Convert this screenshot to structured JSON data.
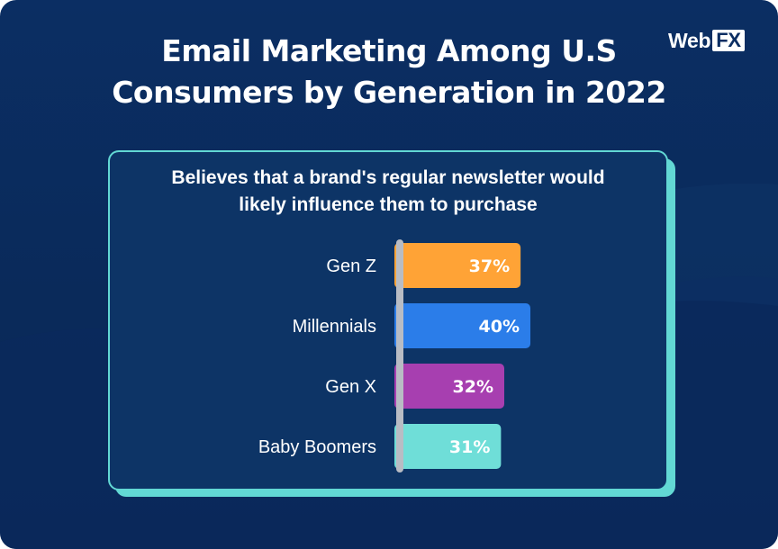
{
  "title": {
    "line1": "Email Marketing Among U.S",
    "line2": "Consumers by Generation in 2022"
  },
  "logo": {
    "web": "Web",
    "fx": "FX"
  },
  "colors": {
    "background": "#0b2e63",
    "panel": "#0d3466",
    "panel_border": "#62d8d4",
    "axis": "#b8bcc4"
  },
  "chart_data": {
    "type": "bar",
    "orientation": "horizontal",
    "subtitle_line1": "Believes that a brand's regular newsletter would",
    "subtitle_line2": "likely influence them to purchase",
    "categories": [
      "Gen Z",
      "Millennials",
      "Gen X",
      "Baby Boomers"
    ],
    "values": [
      37,
      40,
      32,
      31
    ],
    "labels": [
      "37%",
      "40%",
      "32%",
      "31%"
    ],
    "colors": [
      "#ffa336",
      "#2b7de9",
      "#a73fb0",
      "#6fded8"
    ],
    "xlim": [
      0,
      40
    ],
    "xlabel": "",
    "ylabel": "",
    "grid": false
  }
}
